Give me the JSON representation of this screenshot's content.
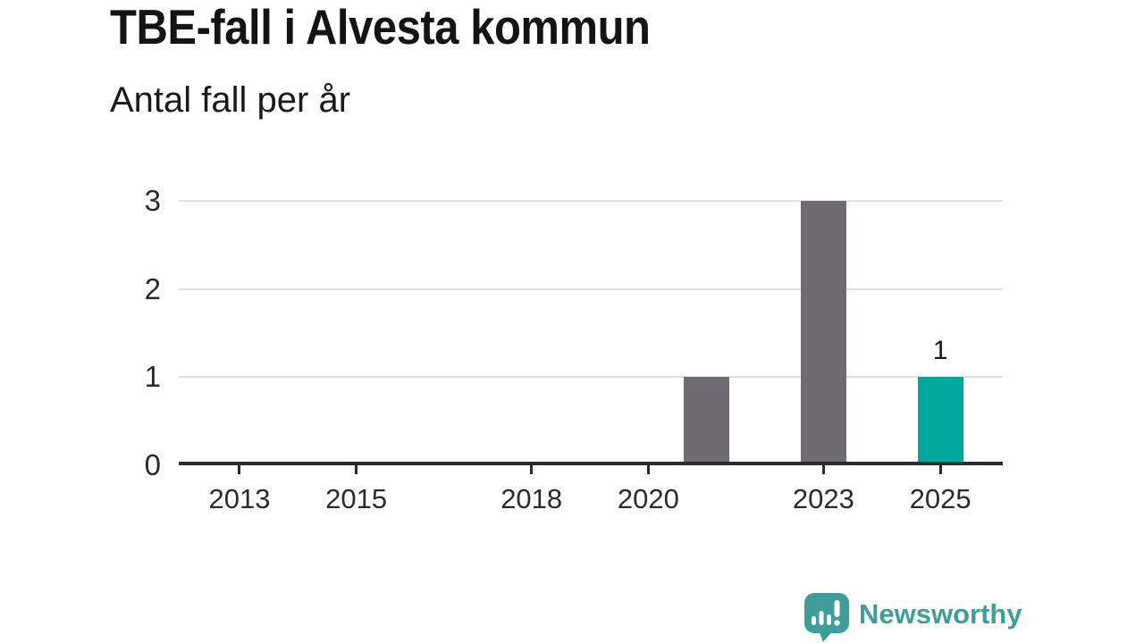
{
  "header": {
    "title": "TBE-fall i Alvesta kommun",
    "subtitle": "Antal fall per år"
  },
  "chart_data": {
    "type": "bar",
    "title": "TBE-fall i Alvesta kommun",
    "subtitle": "Antal fall per år",
    "x": [
      2021,
      2023,
      2025
    ],
    "values": [
      1,
      3,
      1
    ],
    "bar_colors": [
      "#6e6c72",
      "#6e6c72",
      "#00a79c"
    ],
    "value_labels": [
      {
        "x": 2025,
        "text": "1"
      }
    ],
    "x_ticks": [
      "2013",
      "2015",
      "2018",
      "2020",
      "2023",
      "2025"
    ],
    "x_tick_values": [
      2013,
      2015,
      2018,
      2020,
      2023,
      2025
    ],
    "y_ticks": [
      0,
      1,
      2,
      3
    ],
    "xlim": [
      2011.96,
      2026.07
    ],
    "ylim": [
      0,
      3
    ],
    "grid": "horizontal",
    "legend": "none",
    "colors": {
      "bar_default": "#6e6c72",
      "bar_highlight": "#00a79c",
      "gridline": "#e0e0e0",
      "axis": "#2b2b2b",
      "tick_label": "#2b2b2b"
    }
  },
  "footer": {
    "brand": "Newsworthy",
    "brand_color": "#3f9e99"
  }
}
